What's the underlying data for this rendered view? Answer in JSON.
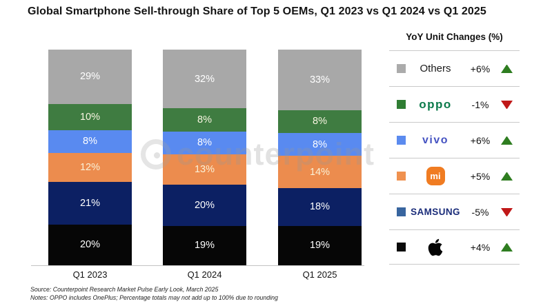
{
  "title": "Global Smartphone Sell-through Share of Top 5 OEMs, Q1 2023 vs Q1 2024 vs Q1 2025",
  "watermark": "counterpoint",
  "chart_data": {
    "type": "bar",
    "stacked": true,
    "unit": "%",
    "title": "Global Smartphone Sell-through Share of Top 5 OEMs, Q1 2023 vs Q1 2024 vs Q1 2025",
    "categories": [
      "Q1 2023",
      "Q1 2024",
      "Q1 2025"
    ],
    "series_order": "top-to-bottom within each stacked bar",
    "series": [
      {
        "name": "Others",
        "color": "#a8a8a8",
        "label_color": "#ffffff",
        "values": [
          29,
          32,
          33
        ]
      },
      {
        "name": "OPPO",
        "color": "#3f7c41",
        "label_color": "#faf6e3",
        "values": [
          10,
          8,
          8
        ]
      },
      {
        "name": "vivo",
        "color": "#598af0",
        "label_color": "#ffffff",
        "values": [
          8,
          8,
          8
        ]
      },
      {
        "name": "Xiaomi",
        "color": "#ec8c4e",
        "label_color": "#faf2d8",
        "values": [
          12,
          13,
          14
        ]
      },
      {
        "name": "Samsung",
        "color": "#0c2063",
        "label_color": "#ffffff",
        "values": [
          21,
          20,
          18
        ]
      },
      {
        "name": "Apple",
        "color": "#060606",
        "label_color": "#ffffff",
        "values": [
          20,
          19,
          19
        ]
      }
    ],
    "ylim": [
      0,
      100
    ],
    "grid": false,
    "legend_position": "right"
  },
  "legend": {
    "header": "YoY Unit Changes (%)",
    "rows": [
      {
        "brand": "Others",
        "logo_text": "Others",
        "change": "+6%",
        "direction": "up",
        "swatch_color": "#ababab"
      },
      {
        "brand": "OPPO",
        "logo_text": "oppo",
        "change": "-1%",
        "direction": "down",
        "swatch_color": "#2f7d33"
      },
      {
        "brand": "vivo",
        "logo_text": "vivo",
        "change": "+6%",
        "direction": "up",
        "swatch_color": "#5b8bef"
      },
      {
        "brand": "Xiaomi",
        "logo_text": "mi",
        "change": "+5%",
        "direction": "up",
        "swatch_color": "#f0914f"
      },
      {
        "brand": "SAMSUNG",
        "logo_text": "SAMSUNG",
        "change": "-5%",
        "direction": "down",
        "swatch_color": "#38659f"
      },
      {
        "brand": "Apple",
        "logo_text": "",
        "change": "+4%",
        "direction": "up",
        "swatch_color": "#0a0a0a"
      }
    ]
  },
  "footer": {
    "source": "Source: Counterpoint Research Market Pulse Early Look, March 2025",
    "notes": "Notes: OPPO includes OnePlus; Percentage totals may not add up to 100% due to rounding"
  }
}
